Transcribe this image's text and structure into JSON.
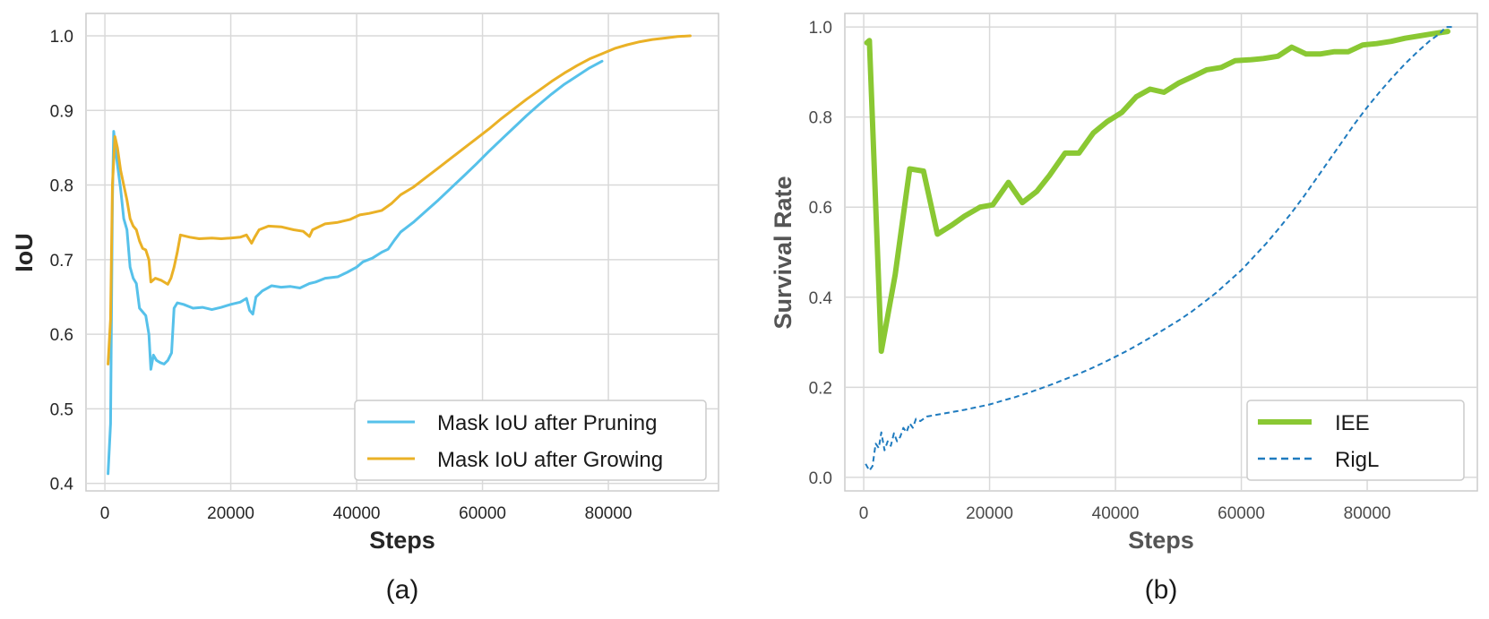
{
  "chart_data": [
    {
      "type": "line",
      "panel_label": "(a)",
      "xlabel": "Steps",
      "ylabel": "IoU",
      "xlim": [
        -3000,
        97500
      ],
      "ylim": [
        0.39,
        1.03
      ],
      "xticks": [
        0,
        20000,
        40000,
        60000,
        80000
      ],
      "xtick_labels": [
        "0",
        "20000",
        "40000",
        "60000",
        "80000"
      ],
      "yticks": [
        0.4,
        0.5,
        0.6,
        0.7,
        0.8,
        0.9,
        1.0
      ],
      "ytick_labels": [
        "0.4",
        "0.5",
        "0.6",
        "0.7",
        "0.8",
        "0.9",
        "1.0"
      ],
      "grid": true,
      "legend_position": "lower-right",
      "series": [
        {
          "name": "Mask IoU after Pruning",
          "color": "#56c1ea",
          "line_style": "solid",
          "line_width": 3,
          "points": [
            [
              500,
              0.413
            ],
            [
              900,
              0.48
            ],
            [
              1200,
              0.78
            ],
            [
              1400,
              0.872
            ],
            [
              1800,
              0.84
            ],
            [
              2500,
              0.795
            ],
            [
              3000,
              0.755
            ],
            [
              3500,
              0.74
            ],
            [
              4000,
              0.69
            ],
            [
              4500,
              0.675
            ],
            [
              5000,
              0.668
            ],
            [
              5500,
              0.635
            ],
            [
              6000,
              0.63
            ],
            [
              6500,
              0.625
            ],
            [
              7000,
              0.6
            ],
            [
              7300,
              0.553
            ],
            [
              7700,
              0.572
            ],
            [
              8200,
              0.565
            ],
            [
              8800,
              0.562
            ],
            [
              9400,
              0.56
            ],
            [
              10000,
              0.565
            ],
            [
              10600,
              0.575
            ],
            [
              11000,
              0.635
            ],
            [
              11500,
              0.642
            ],
            [
              12500,
              0.64
            ],
            [
              14000,
              0.635
            ],
            [
              15500,
              0.636
            ],
            [
              17000,
              0.633
            ],
            [
              18500,
              0.636
            ],
            [
              20000,
              0.64
            ],
            [
              21500,
              0.643
            ],
            [
              22500,
              0.648
            ],
            [
              23000,
              0.632
            ],
            [
              23500,
              0.627
            ],
            [
              24000,
              0.65
            ],
            [
              25000,
              0.658
            ],
            [
              26500,
              0.665
            ],
            [
              28000,
              0.663
            ],
            [
              29500,
              0.664
            ],
            [
              31000,
              0.662
            ],
            [
              32500,
              0.668
            ],
            [
              33500,
              0.67
            ],
            [
              35000,
              0.675
            ],
            [
              37000,
              0.677
            ],
            [
              38500,
              0.683
            ],
            [
              40000,
              0.69
            ],
            [
              41000,
              0.697
            ],
            [
              42500,
              0.702
            ],
            [
              44000,
              0.71
            ],
            [
              45000,
              0.714
            ],
            [
              46000,
              0.726
            ],
            [
              47000,
              0.737
            ],
            [
              49000,
              0.75
            ],
            [
              51000,
              0.765
            ],
            [
              53000,
              0.78
            ],
            [
              55000,
              0.796
            ],
            [
              57000,
              0.812
            ],
            [
              59000,
              0.828
            ],
            [
              61000,
              0.845
            ],
            [
              63000,
              0.861
            ],
            [
              65000,
              0.877
            ],
            [
              67000,
              0.893
            ],
            [
              69000,
              0.908
            ],
            [
              71000,
              0.922
            ],
            [
              73000,
              0.935
            ],
            [
              75000,
              0.946
            ],
            [
              77000,
              0.957
            ],
            [
              79000,
              0.966
            ]
          ]
        },
        {
          "name": "Mask IoU after Growing",
          "color": "#eab126",
          "line_style": "solid",
          "line_width": 3,
          "points": [
            [
              500,
              0.56
            ],
            [
              900,
              0.62
            ],
            [
              1200,
              0.8
            ],
            [
              1600,
              0.865
            ],
            [
              2000,
              0.85
            ],
            [
              2500,
              0.82
            ],
            [
              3000,
              0.8
            ],
            [
              3500,
              0.78
            ],
            [
              4000,
              0.755
            ],
            [
              4500,
              0.745
            ],
            [
              5000,
              0.74
            ],
            [
              5500,
              0.725
            ],
            [
              6000,
              0.715
            ],
            [
              6500,
              0.713
            ],
            [
              7000,
              0.7
            ],
            [
              7300,
              0.67
            ],
            [
              8000,
              0.675
            ],
            [
              9000,
              0.672
            ],
            [
              10000,
              0.667
            ],
            [
              10500,
              0.675
            ],
            [
              11000,
              0.69
            ],
            [
              11500,
              0.71
            ],
            [
              12000,
              0.733
            ],
            [
              13500,
              0.73
            ],
            [
              15000,
              0.728
            ],
            [
              17000,
              0.729
            ],
            [
              18500,
              0.728
            ],
            [
              20000,
              0.729
            ],
            [
              21500,
              0.73
            ],
            [
              22500,
              0.733
            ],
            [
              23300,
              0.722
            ],
            [
              23800,
              0.73
            ],
            [
              24500,
              0.74
            ],
            [
              26000,
              0.745
            ],
            [
              28000,
              0.744
            ],
            [
              30000,
              0.74
            ],
            [
              31500,
              0.738
            ],
            [
              32500,
              0.731
            ],
            [
              33000,
              0.74
            ],
            [
              35000,
              0.748
            ],
            [
              37000,
              0.75
            ],
            [
              39000,
              0.754
            ],
            [
              40500,
              0.76
            ],
            [
              42000,
              0.762
            ],
            [
              44000,
              0.766
            ],
            [
              45500,
              0.775
            ],
            [
              47000,
              0.787
            ],
            [
              49000,
              0.797
            ],
            [
              51000,
              0.81
            ],
            [
              53000,
              0.823
            ],
            [
              55000,
              0.836
            ],
            [
              57000,
              0.849
            ],
            [
              59000,
              0.862
            ],
            [
              61000,
              0.875
            ],
            [
              63000,
              0.889
            ],
            [
              65000,
              0.902
            ],
            [
              67000,
              0.915
            ],
            [
              69000,
              0.927
            ],
            [
              71000,
              0.939
            ],
            [
              73000,
              0.95
            ],
            [
              75000,
              0.96
            ],
            [
              77000,
              0.969
            ],
            [
              79000,
              0.976
            ],
            [
              81000,
              0.983
            ],
            [
              83000,
              0.988
            ],
            [
              85000,
              0.992
            ],
            [
              87000,
              0.995
            ],
            [
              89000,
              0.997
            ],
            [
              91000,
              0.999
            ],
            [
              93000,
              1.0
            ]
          ]
        }
      ]
    },
    {
      "type": "line",
      "panel_label": "(b)",
      "xlabel": "Steps",
      "ylabel": "Survival Rate",
      "xlim": [
        -3000,
        97500
      ],
      "ylim": [
        -0.03,
        1.03
      ],
      "xticks": [
        0,
        20000,
        40000,
        60000,
        80000
      ],
      "xtick_labels": [
        "0",
        "20000",
        "40000",
        "60000",
        "80000"
      ],
      "yticks": [
        0.0,
        0.2,
        0.4,
        0.6,
        0.8,
        1.0
      ],
      "ytick_labels": [
        "0.0",
        "0.2",
        "0.4",
        "0.6",
        "0.8",
        "1.0"
      ],
      "grid": true,
      "legend_position": "lower-right",
      "series": [
        {
          "name": "IEE",
          "color": "#8ac833",
          "line_style": "solid",
          "line_width": 6,
          "points": [
            [
              500,
              0.965
            ],
            [
              900,
              0.97
            ],
            [
              2800,
              0.28
            ],
            [
              5000,
              0.45
            ],
            [
              7300,
              0.685
            ],
            [
              9500,
              0.68
            ],
            [
              11700,
              0.54
            ],
            [
              14000,
              0.56
            ],
            [
              16000,
              0.58
            ],
            [
              18500,
              0.6
            ],
            [
              20500,
              0.605
            ],
            [
              23000,
              0.655
            ],
            [
              25200,
              0.61
            ],
            [
              27500,
              0.635
            ],
            [
              29500,
              0.67
            ],
            [
              32000,
              0.72
            ],
            [
              34200,
              0.72
            ],
            [
              36500,
              0.765
            ],
            [
              38700,
              0.79
            ],
            [
              41000,
              0.81
            ],
            [
              43300,
              0.845
            ],
            [
              45500,
              0.862
            ],
            [
              47700,
              0.855
            ],
            [
              50000,
              0.875
            ],
            [
              52300,
              0.89
            ],
            [
              54500,
              0.905
            ],
            [
              56800,
              0.91
            ],
            [
              59000,
              0.925
            ],
            [
              61300,
              0.927
            ],
            [
              63500,
              0.93
            ],
            [
              65800,
              0.935
            ],
            [
              68000,
              0.955
            ],
            [
              70300,
              0.94
            ],
            [
              72500,
              0.94
            ],
            [
              74800,
              0.945
            ],
            [
              77000,
              0.945
            ],
            [
              79300,
              0.96
            ],
            [
              81500,
              0.963
            ],
            [
              83800,
              0.968
            ],
            [
              86000,
              0.975
            ],
            [
              88300,
              0.98
            ],
            [
              90500,
              0.985
            ],
            [
              92800,
              0.99
            ]
          ]
        },
        {
          "name": "RigL",
          "color": "#1f7bbf",
          "line_style": "dashed",
          "line_width": 2,
          "points": [
            [
              300,
              0.03
            ],
            [
              900,
              0.015
            ],
            [
              1400,
              0.025
            ],
            [
              1900,
              0.075
            ],
            [
              2400,
              0.065
            ],
            [
              2800,
              0.1
            ],
            [
              3300,
              0.06
            ],
            [
              3800,
              0.08
            ],
            [
              4300,
              0.07
            ],
            [
              4800,
              0.098
            ],
            [
              5300,
              0.08
            ],
            [
              5800,
              0.09
            ],
            [
              6300,
              0.11
            ],
            [
              6800,
              0.1
            ],
            [
              7300,
              0.12
            ],
            [
              7800,
              0.11
            ],
            [
              8300,
              0.13
            ],
            [
              9000,
              0.125
            ],
            [
              10000,
              0.135
            ],
            [
              12000,
              0.14
            ],
            [
              14000,
              0.145
            ],
            [
              16000,
              0.15
            ],
            [
              18000,
              0.156
            ],
            [
              20000,
              0.162
            ],
            [
              22000,
              0.17
            ],
            [
              24000,
              0.178
            ],
            [
              26000,
              0.187
            ],
            [
              28000,
              0.197
            ],
            [
              30000,
              0.207
            ],
            [
              32000,
              0.218
            ],
            [
              34000,
              0.229
            ],
            [
              36000,
              0.241
            ],
            [
              38000,
              0.254
            ],
            [
              40000,
              0.268
            ],
            [
              42000,
              0.282
            ],
            [
              44000,
              0.298
            ],
            [
              46000,
              0.314
            ],
            [
              48000,
              0.331
            ],
            [
              50000,
              0.348
            ],
            [
              52000,
              0.367
            ],
            [
              54000,
              0.388
            ],
            [
              56000,
              0.41
            ],
            [
              58000,
              0.435
            ],
            [
              60000,
              0.46
            ],
            [
              62000,
              0.49
            ],
            [
              64000,
              0.52
            ],
            [
              66000,
              0.553
            ],
            [
              68000,
              0.588
            ],
            [
              70000,
              0.625
            ],
            [
              72000,
              0.665
            ],
            [
              74000,
              0.705
            ],
            [
              76000,
              0.745
            ],
            [
              78000,
              0.785
            ],
            [
              80000,
              0.822
            ],
            [
              82000,
              0.856
            ],
            [
              84000,
              0.888
            ],
            [
              86000,
              0.918
            ],
            [
              88000,
              0.945
            ],
            [
              90000,
              0.97
            ],
            [
              91500,
              0.985
            ],
            [
              92500,
              1.0
            ],
            [
              93500,
              1.0
            ]
          ]
        }
      ]
    }
  ]
}
